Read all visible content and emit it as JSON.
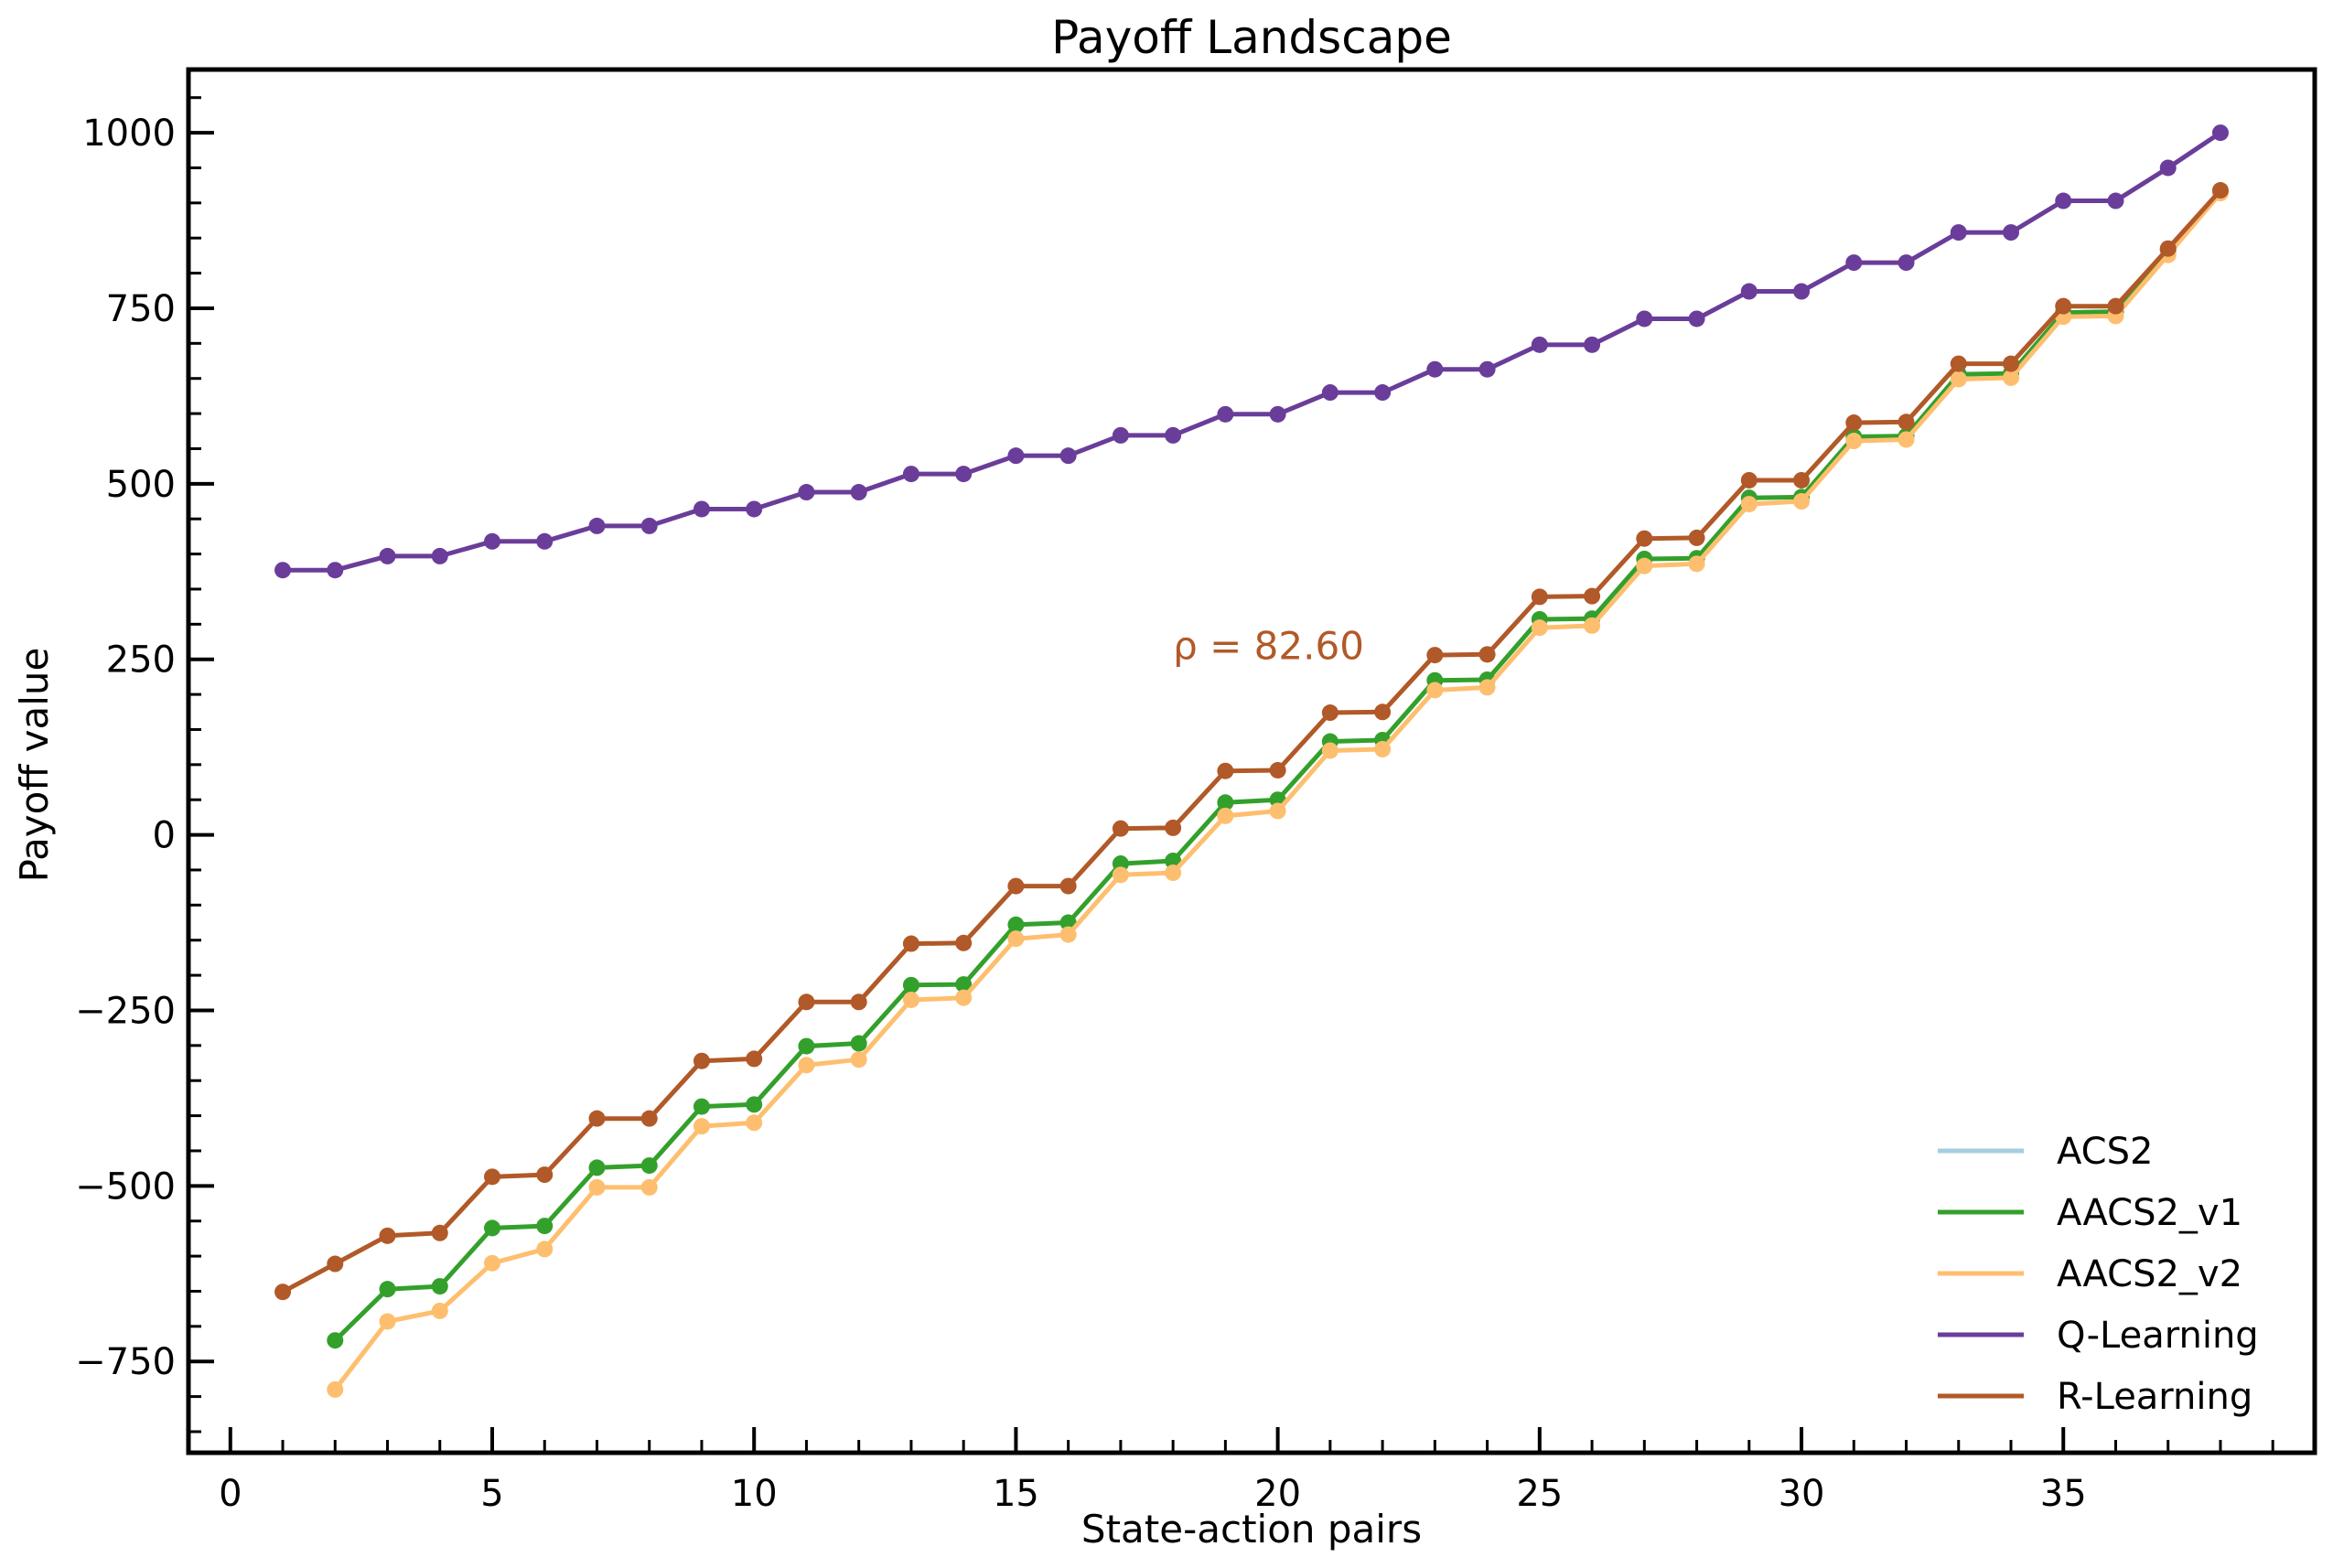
{
  "chart_data": {
    "type": "line",
    "title": "Payoff Landscape",
    "xlabel": "State-action pairs",
    "ylabel": "Payoff value",
    "xlim": [
      -0.8,
      39.8
    ],
    "ylim": [
      -880,
      1090
    ],
    "xticks": [
      0,
      5,
      10,
      15,
      20,
      25,
      30,
      35
    ],
    "xtick_labels": [
      "0",
      "5",
      "10",
      "15",
      "20",
      "25",
      "30",
      "35"
    ],
    "yticks": [
      -750,
      -500,
      -250,
      0,
      250,
      500,
      750,
      1000
    ],
    "ytick_labels": [
      "−750",
      "−500",
      "−250",
      "0",
      "250",
      "500",
      "750",
      "1000"
    ],
    "grid": false,
    "legend_position": "lower right",
    "annotation": {
      "text": "ρ = 82.60",
      "x": 18,
      "y": 250,
      "color": "#b15928"
    },
    "series": [
      {
        "name": "ACS2",
        "color": "#a6cee3",
        "marker": false,
        "x": [],
        "values": []
      },
      {
        "name": "AACS2_v1",
        "color": "#33a02c",
        "marker": true,
        "x": [
          2,
          3,
          4,
          5,
          6,
          7,
          8,
          9,
          10,
          11,
          12,
          13,
          14,
          15,
          16,
          17,
          18,
          19,
          20,
          21,
          22,
          23,
          24,
          25,
          26,
          27,
          28,
          29,
          30,
          31,
          32,
          33,
          34,
          35,
          36,
          37,
          38
        ],
        "values": [
          -720,
          -647,
          -643,
          -560,
          -557,
          -474,
          -471,
          -387,
          -384,
          -301,
          -297,
          -214,
          -213,
          -128,
          -125,
          -41,
          -37,
          46,
          50,
          133,
          135,
          220,
          221,
          307,
          308,
          393,
          394,
          480,
          481,
          567,
          568,
          656,
          657,
          744,
          745,
          833,
          916
        ]
      },
      {
        "name": "AACS2_v2",
        "color": "#fdbf6f",
        "marker": true,
        "x": [
          2,
          3,
          4,
          5,
          6,
          7,
          8,
          9,
          10,
          11,
          12,
          13,
          14,
          15,
          16,
          17,
          18,
          19,
          20,
          21,
          22,
          23,
          24,
          25,
          26,
          27,
          28,
          29,
          30,
          31,
          32,
          33,
          34,
          35,
          36,
          37,
          38
        ],
        "values": [
          -790,
          -693,
          -678,
          -610,
          -590,
          -502,
          -502,
          -415,
          -410,
          -328,
          -320,
          -235,
          -232,
          -148,
          -142,
          -57,
          -54,
          27,
          34,
          120,
          122,
          206,
          210,
          295,
          298,
          383,
          386,
          471,
          475,
          561,
          563,
          649,
          651,
          738,
          739,
          826,
          914
        ]
      },
      {
        "name": "Q-Learning",
        "color": "#6a3d9a",
        "marker": true,
        "x": [
          1,
          2,
          3,
          4,
          5,
          6,
          7,
          8,
          9,
          10,
          11,
          12,
          13,
          14,
          15,
          16,
          17,
          18,
          19,
          20,
          21,
          22,
          23,
          24,
          25,
          26,
          27,
          28,
          29,
          30,
          31,
          32,
          33,
          34,
          35,
          36,
          37,
          38
        ],
        "values": [
          377,
          377,
          397,
          397,
          418,
          418,
          440,
          440,
          464,
          464,
          488,
          488,
          514,
          514,
          540,
          540,
          569,
          569,
          599,
          599,
          630,
          630,
          663,
          663,
          698,
          698,
          735,
          735,
          774,
          774,
          815,
          815,
          858,
          858,
          903,
          903,
          950,
          1000
        ]
      },
      {
        "name": "R-Learning",
        "color": "#b15928",
        "marker": true,
        "x": [
          1,
          2,
          3,
          4,
          5,
          6,
          7,
          8,
          9,
          10,
          11,
          12,
          13,
          14,
          15,
          16,
          17,
          18,
          19,
          20,
          21,
          22,
          23,
          24,
          25,
          26,
          27,
          28,
          29,
          30,
          31,
          32,
          33,
          34,
          35,
          36,
          37,
          38
        ],
        "values": [
          -651,
          -611,
          -571,
          -567,
          -487,
          -484,
          -404,
          -404,
          -322,
          -319,
          -238,
          -238,
          -155,
          -154,
          -73,
          -73,
          9,
          10,
          91,
          92,
          174,
          175,
          256,
          257,
          339,
          340,
          422,
          423,
          505,
          505,
          587,
          588,
          671,
          671,
          753,
          753,
          835,
          918
        ]
      }
    ]
  }
}
